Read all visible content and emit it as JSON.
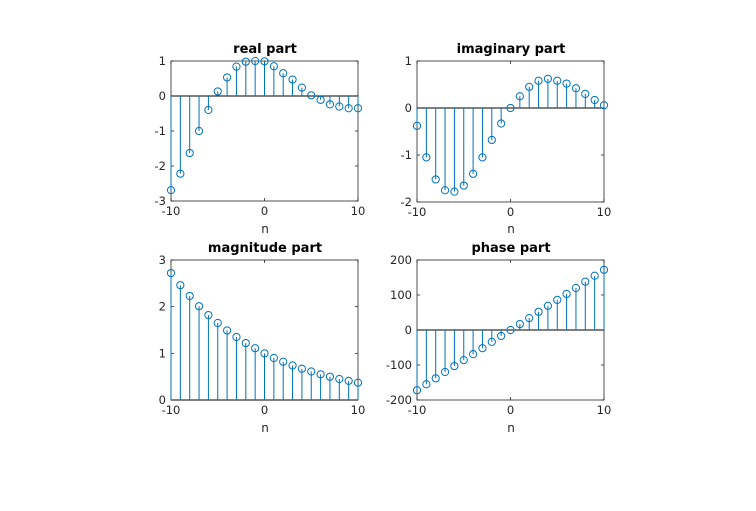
{
  "colors": {
    "stem": "#0072BD",
    "axis": "#262626",
    "background": "#ffffff"
  },
  "chart_data": [
    {
      "type": "stem",
      "title": "real part",
      "xlabel": "n",
      "ylabel": "",
      "xlim": [
        -10,
        10
      ],
      "ylim": [
        -3,
        1
      ],
      "xticks": [
        -10,
        0,
        10
      ],
      "yticks": [
        -3,
        -2,
        -1,
        0,
        1
      ],
      "x": [
        -10,
        -9,
        -8,
        -7,
        -6,
        -5,
        -4,
        -3,
        -2,
        -1,
        0,
        1,
        2,
        3,
        4,
        5,
        6,
        7,
        8,
        9,
        10
      ],
      "values": [
        -2.69,
        -2.22,
        -1.63,
        -1.0,
        -0.4,
        0.13,
        0.53,
        0.84,
        0.98,
        1.0,
        0.99,
        0.85,
        0.65,
        0.47,
        0.24,
        0.02,
        -0.11,
        -0.24,
        -0.3,
        -0.35,
        -0.35
      ]
    },
    {
      "type": "stem",
      "title": "imaginary part",
      "xlabel": "n",
      "ylabel": "",
      "xlim": [
        -10,
        10
      ],
      "ylim": [
        -2,
        1
      ],
      "xticks": [
        -10,
        0,
        10
      ],
      "yticks": [
        -2,
        -1,
        0,
        1
      ],
      "x": [
        -10,
        -9,
        -8,
        -7,
        -6,
        -5,
        -4,
        -3,
        -2,
        -1,
        0,
        1,
        2,
        3,
        4,
        5,
        6,
        7,
        8,
        9,
        10
      ],
      "values": [
        -0.38,
        -1.05,
        -1.52,
        -1.75,
        -1.78,
        -1.65,
        -1.4,
        -1.05,
        -0.68,
        -0.33,
        0.0,
        0.25,
        0.45,
        0.58,
        0.62,
        0.58,
        0.52,
        0.42,
        0.3,
        0.17,
        0.06
      ]
    },
    {
      "type": "stem",
      "title": "magnitude part",
      "xlabel": "n",
      "ylabel": "",
      "xlim": [
        -10,
        10
      ],
      "ylim": [
        0,
        3
      ],
      "xticks": [
        -10,
        0,
        10
      ],
      "yticks": [
        0,
        1,
        2,
        3
      ],
      "x": [
        -10,
        -9,
        -8,
        -7,
        -6,
        -5,
        -4,
        -3,
        -2,
        -1,
        0,
        1,
        2,
        3,
        4,
        5,
        6,
        7,
        8,
        9,
        10
      ],
      "values": [
        2.72,
        2.46,
        2.23,
        2.01,
        1.82,
        1.65,
        1.49,
        1.35,
        1.22,
        1.11,
        1.0,
        0.9,
        0.82,
        0.74,
        0.67,
        0.61,
        0.55,
        0.5,
        0.45,
        0.41,
        0.37
      ]
    },
    {
      "type": "stem",
      "title": "phase part",
      "xlabel": "n",
      "ylabel": "",
      "xlim": [
        -10,
        10
      ],
      "ylim": [
        -200,
        200
      ],
      "xticks": [
        -10,
        0,
        10
      ],
      "yticks": [
        -200,
        -100,
        0,
        100,
        200
      ],
      "x": [
        -10,
        -9,
        -8,
        -7,
        -6,
        -5,
        -4,
        -3,
        -2,
        -1,
        0,
        1,
        2,
        3,
        4,
        5,
        6,
        7,
        8,
        9,
        10
      ],
      "values": [
        -172,
        -155,
        -138,
        -120,
        -103,
        -86,
        -69,
        -52,
        -34,
        -17,
        0,
        17,
        34,
        52,
        69,
        86,
        103,
        120,
        138,
        155,
        172
      ]
    }
  ]
}
